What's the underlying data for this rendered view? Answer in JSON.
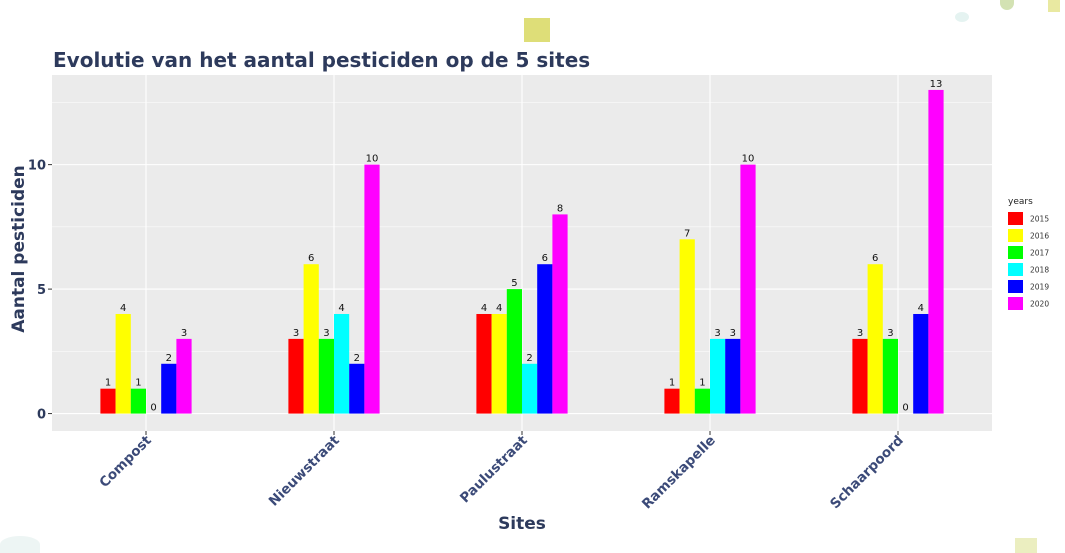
{
  "chart_data": {
    "type": "bar",
    "title": "Evolutie van het aantal pesticiden op de 5 sites",
    "xlabel": "Sites",
    "ylabel": "Aantal pesticiden",
    "ylim": [
      -0.7,
      13.6
    ],
    "yticks": [
      0,
      5,
      10
    ],
    "grid": true,
    "legend_title": "years",
    "legend_position": "right",
    "categories": [
      "Compost",
      "Nieuwstraat",
      "Paulustraat",
      "Ramskapelle",
      "Schaarpoord"
    ],
    "series": [
      {
        "name": "2015",
        "color": "#ff0000",
        "values": [
          1,
          3,
          4,
          1,
          3
        ]
      },
      {
        "name": "2016",
        "color": "#ffff00",
        "values": [
          4,
          6,
          4,
          7,
          6
        ]
      },
      {
        "name": "2017",
        "color": "#00ff00",
        "values": [
          1,
          3,
          5,
          1,
          3
        ]
      },
      {
        "name": "2018",
        "color": "#00ffff",
        "values": [
          0,
          4,
          2,
          3,
          null
        ]
      },
      {
        "name": "2019",
        "color": "#0000ff",
        "values": [
          2,
          2,
          6,
          3,
          4
        ]
      },
      {
        "name": "2020",
        "color": "#ff00ff",
        "values": [
          3,
          10,
          8,
          10,
          13
        ]
      }
    ],
    "data_labels": [
      [
        {
          "series": "2015",
          "value": 1
        },
        {
          "series": "2016",
          "value": 4
        },
        {
          "series": "2017",
          "value": 1
        },
        {
          "series": "2018",
          "value": 0
        },
        {
          "series": "2019",
          "value": 2
        },
        {
          "series": "2020",
          "value": 3
        }
      ],
      [
        {
          "series": "2015",
          "value": 3
        },
        {
          "series": "2016",
          "value": 6
        },
        {
          "series": "2017",
          "value": 3
        },
        {
          "series": "2018",
          "value": 4
        },
        {
          "series": "2019",
          "value": 2
        },
        {
          "series": "2020",
          "value": 10
        }
      ],
      [
        {
          "series": "2015",
          "value": 4
        },
        {
          "series": "2016",
          "value": 4
        },
        {
          "series": "2017",
          "value": 5
        },
        {
          "series": "2018",
          "value": 2
        },
        {
          "series": "2019",
          "value": 6
        },
        {
          "series": "2020",
          "value": 8
        }
      ],
      [
        {
          "series": "2015",
          "value": 1
        },
        {
          "series": "2016",
          "value": 7
        },
        {
          "series": "2017",
          "value": 1
        },
        {
          "series": "2018",
          "value": 3
        },
        {
          "series": "2019",
          "value": 3
        },
        {
          "series": "2020",
          "value": 10
        }
      ],
      [
        {
          "series": "2015",
          "value": 3
        },
        {
          "series": "2016",
          "value": 6
        },
        {
          "series": "2017",
          "value": 3
        },
        {
          "series": "2019",
          "value": 4
        },
        {
          "series": "2020",
          "value": 13
        }
      ]
    ],
    "zero_labels": [
      {
        "category": "Compost",
        "series": "2018",
        "value": 0
      },
      {
        "category": "Schaarpoord",
        "series": "2018",
        "value": 0
      }
    ]
  },
  "colors": {
    "panel": "#ebebeb",
    "grid": "#ffffff",
    "title": "#2d3a5c"
  }
}
